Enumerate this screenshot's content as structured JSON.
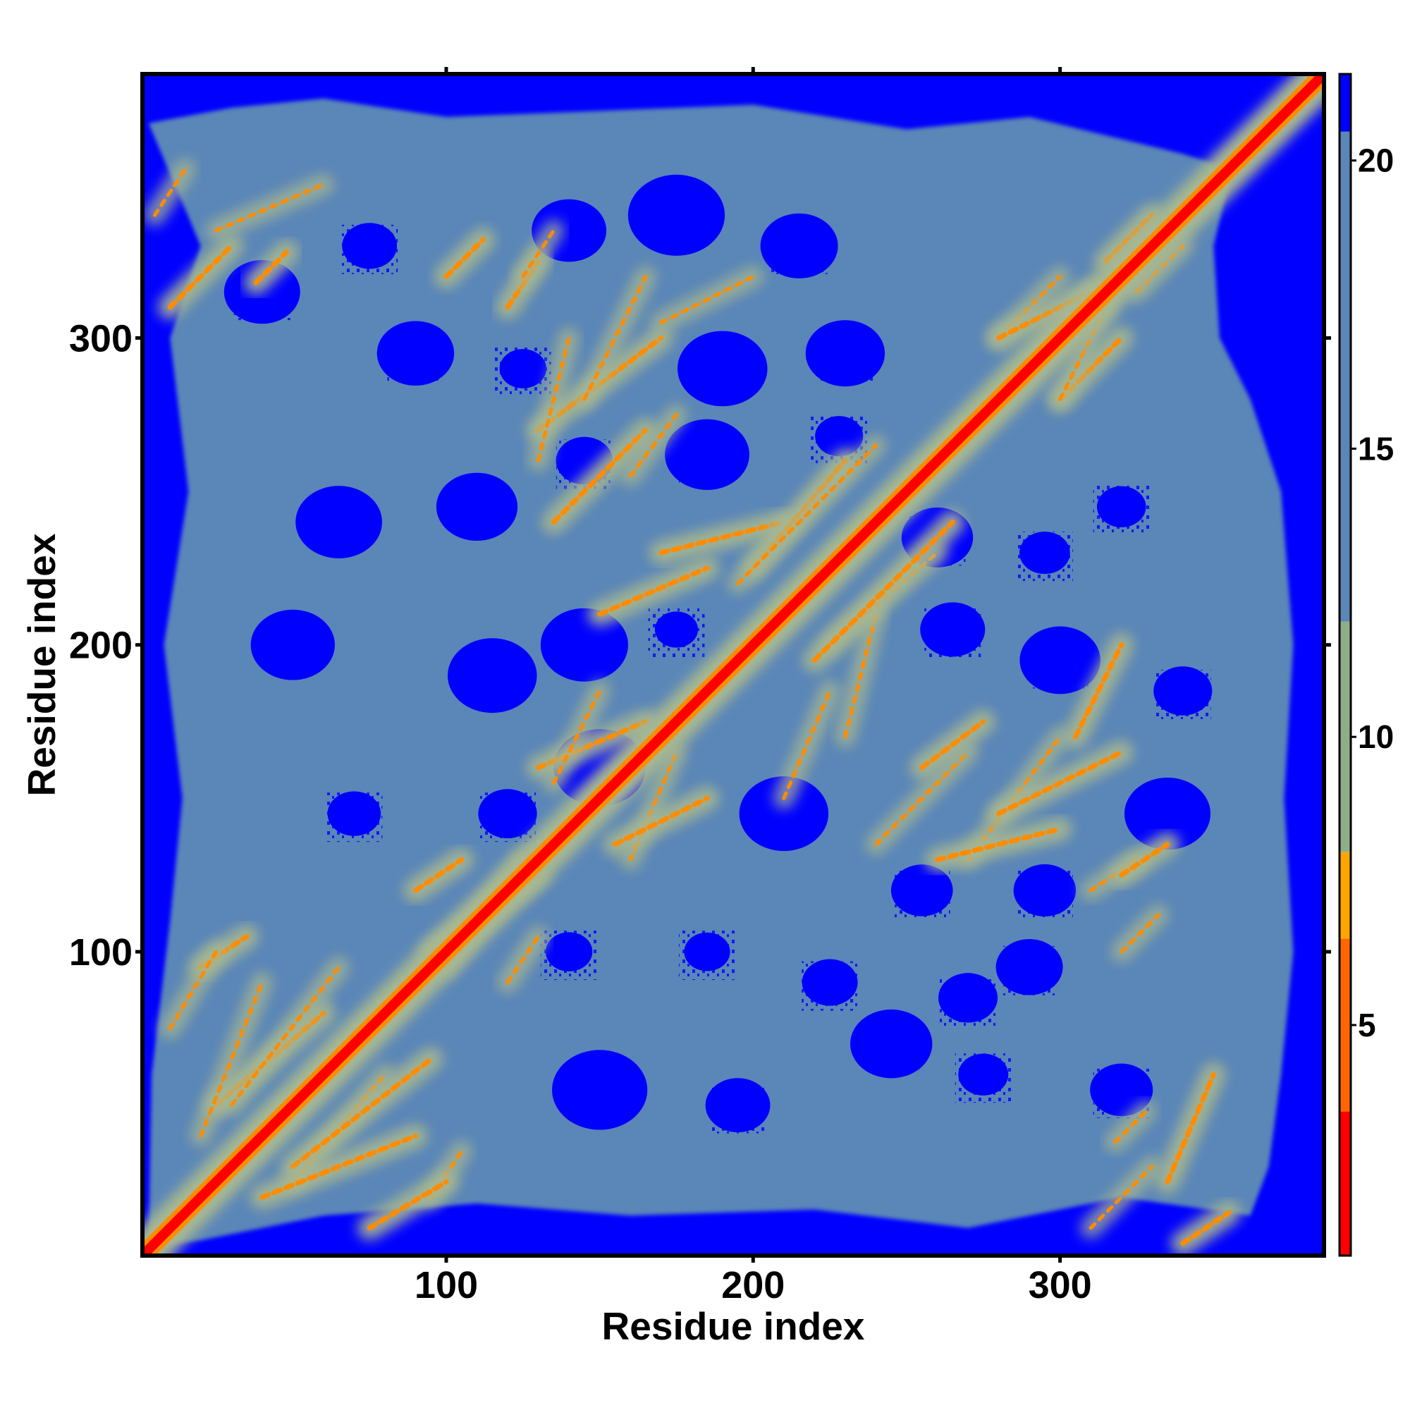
{
  "chart_data": {
    "type": "heatmap",
    "title": "",
    "xlabel": "Residue index",
    "ylabel": "Residue index",
    "xlim": [
      1,
      386
    ],
    "ylim": [
      1,
      386
    ],
    "x_ticks": [
      100,
      200,
      300
    ],
    "y_ticks": [
      100,
      200,
      300
    ],
    "colorbar": {
      "range": [
        1,
        21.5
      ],
      "ticks": [
        5,
        10,
        15,
        20
      ],
      "colors": [
        {
          "from": 1,
          "to": 3.5,
          "color": "#ff0000"
        },
        {
          "from": 3.5,
          "to": 6.5,
          "color": "#ff6600"
        },
        {
          "from": 6.5,
          "to": 8,
          "color": "#ffa500"
        },
        {
          "from": 8,
          "to": 12,
          "color": "#8fae88"
        },
        {
          "from": 12,
          "to": 20.5,
          "color": "#5a86b8"
        },
        {
          "from": 20.5,
          "to": 21.5,
          "color": "#0000ff"
        }
      ]
    },
    "colors": {
      "diagonal": "#ff0000",
      "near_contact": "#ff8c00",
      "medium": "#a8b890",
      "far": "#5a86b8",
      "cutoff": "#0000ff"
    },
    "contact_segments": [
      {
        "x": [
          10,
          30
        ],
        "y": [
          310,
          330
        ]
      },
      {
        "x": [
          38,
          48
        ],
        "y": [
          318,
          328
        ]
      },
      {
        "x": [
          100,
          112
        ],
        "y": [
          320,
          332
        ]
      },
      {
        "x": [
          120,
          130
        ],
        "y": [
          310,
          325
        ]
      },
      {
        "x": [
          130,
          170
        ],
        "y": [
          270,
          300
        ]
      },
      {
        "x": [
          135,
          165
        ],
        "y": [
          240,
          270
        ]
      },
      {
        "x": [
          150,
          185
        ],
        "y": [
          210,
          225
        ]
      },
      {
        "x": [
          170,
          210
        ],
        "y": [
          230,
          240
        ]
      },
      {
        "x": [
          200,
          230
        ],
        "y": [
          225,
          260
        ]
      },
      {
        "x": [
          220,
          265
        ],
        "y": [
          195,
          240
        ]
      },
      {
        "x": [
          255,
          275
        ],
        "y": [
          160,
          175
        ]
      },
      {
        "x": [
          260,
          300
        ],
        "y": [
          130,
          140
        ]
      },
      {
        "x": [
          280,
          320
        ],
        "y": [
          145,
          165
        ]
      },
      {
        "x": [
          305,
          320
        ],
        "y": [
          170,
          200
        ]
      },
      {
        "x": [
          320,
          335
        ],
        "y": [
          125,
          135
        ]
      },
      {
        "x": [
          335,
          350
        ],
        "y": [
          25,
          60
        ]
      },
      {
        "x": [
          340,
          355
        ],
        "y": [
          5,
          15
        ]
      },
      {
        "x": [
          130,
          165
        ],
        "y": [
          160,
          175
        ]
      },
      {
        "x": [
          155,
          185
        ],
        "y": [
          135,
          150
        ]
      },
      {
        "x": [
          20,
          35
        ],
        "y": [
          95,
          105
        ]
      },
      {
        "x": [
          25,
          60
        ],
        "y": [
          50,
          80
        ]
      },
      {
        "x": [
          50,
          95
        ],
        "y": [
          30,
          65
        ]
      },
      {
        "x": [
          40,
          90
        ],
        "y": [
          20,
          40
        ]
      },
      {
        "x": [
          75,
          100
        ],
        "y": [
          10,
          25
        ]
      },
      {
        "x": [
          95,
          130
        ],
        "y": [
          100,
          125
        ]
      },
      {
        "x": [
          90,
          105
        ],
        "y": [
          120,
          130
        ]
      },
      {
        "x": [
          300,
          320
        ],
        "y": [
          280,
          300
        ]
      },
      {
        "x": [
          280,
          310
        ],
        "y": [
          300,
          315
        ]
      },
      {
        "x": [
          315,
          330
        ],
        "y": [
          325,
          340
        ]
      }
    ],
    "grid": false,
    "legend": "colorbar-right"
  }
}
